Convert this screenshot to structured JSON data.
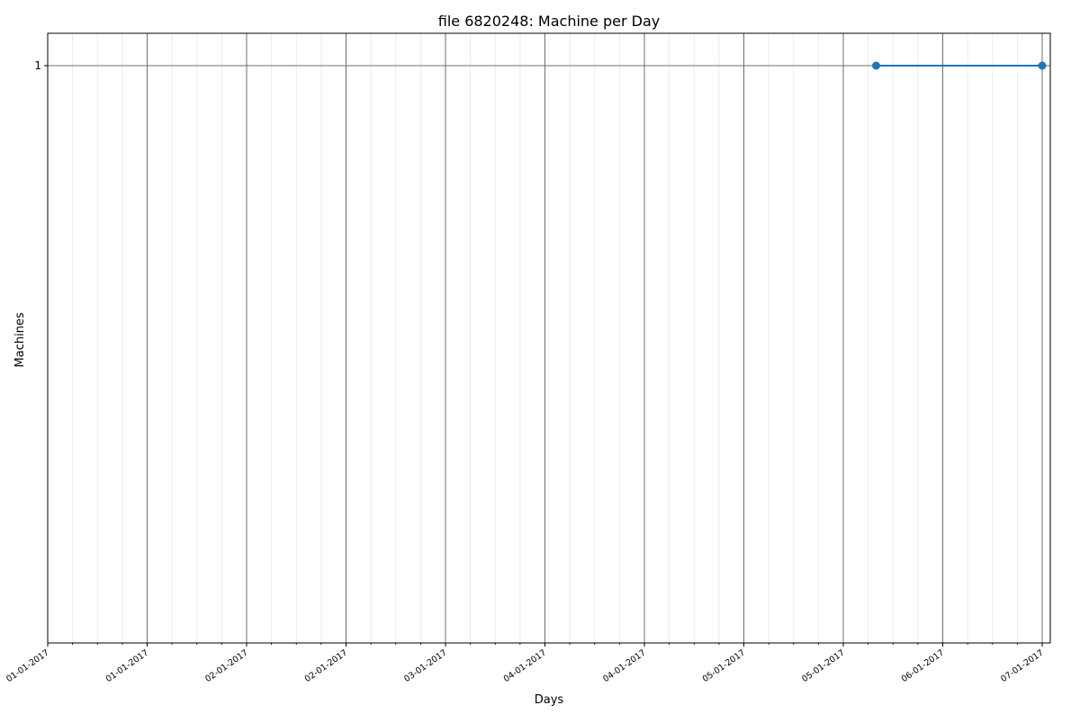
{
  "chart_data": {
    "type": "line",
    "title": "file 6820248: Machine per Day",
    "xlabel": "Days",
    "ylabel": "Machines",
    "x_tick_labels": [
      "01-01-2017",
      "01-01-2017",
      "02-01-2017",
      "02-01-2017",
      "03-01-2017",
      "04-01-2017",
      "04-01-2017",
      "05-01-2017",
      "05-01-2017",
      "06-01-2017",
      "07-01-2017"
    ],
    "y_tick_labels": [
      "1"
    ],
    "ylim": [
      0,
      1.05
    ],
    "grid": true,
    "series": [
      {
        "color": "#1f77b4",
        "x": [
          0.833,
          1.0
        ],
        "y": [
          1,
          1
        ]
      }
    ]
  }
}
